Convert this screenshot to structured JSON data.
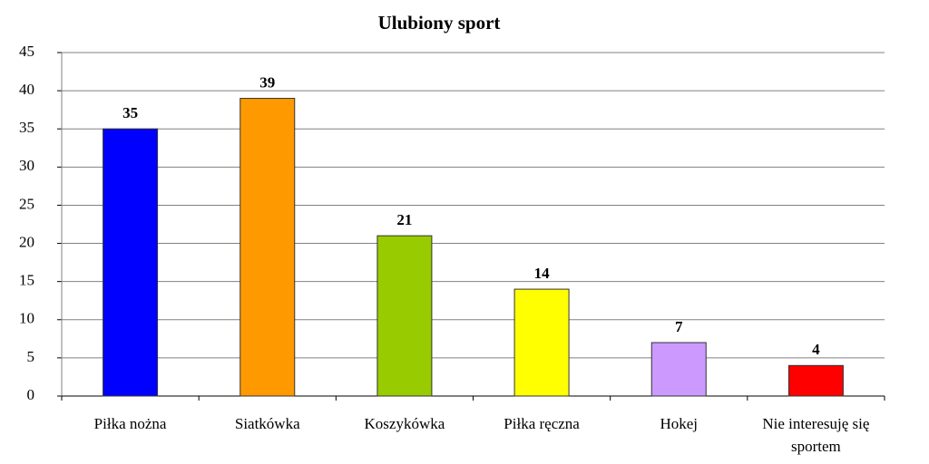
{
  "chart_data": {
    "type": "bar",
    "title": "Ulubiony sport",
    "categories": [
      "Piłka nożna",
      "Siatkówka",
      "Koszykówka",
      "Piłka ręczna",
      "Hokej",
      "Nie interesuję się sportem"
    ],
    "values": [
      35,
      39,
      21,
      14,
      7,
      4
    ],
    "colors": [
      "#0000ff",
      "#ff9900",
      "#99cc00",
      "#ffff00",
      "#cc99ff",
      "#ff0000"
    ],
    "ylim": [
      0,
      45
    ],
    "yticks": [
      0,
      5,
      10,
      15,
      20,
      25,
      30,
      35,
      40,
      45
    ],
    "grid": true
  }
}
